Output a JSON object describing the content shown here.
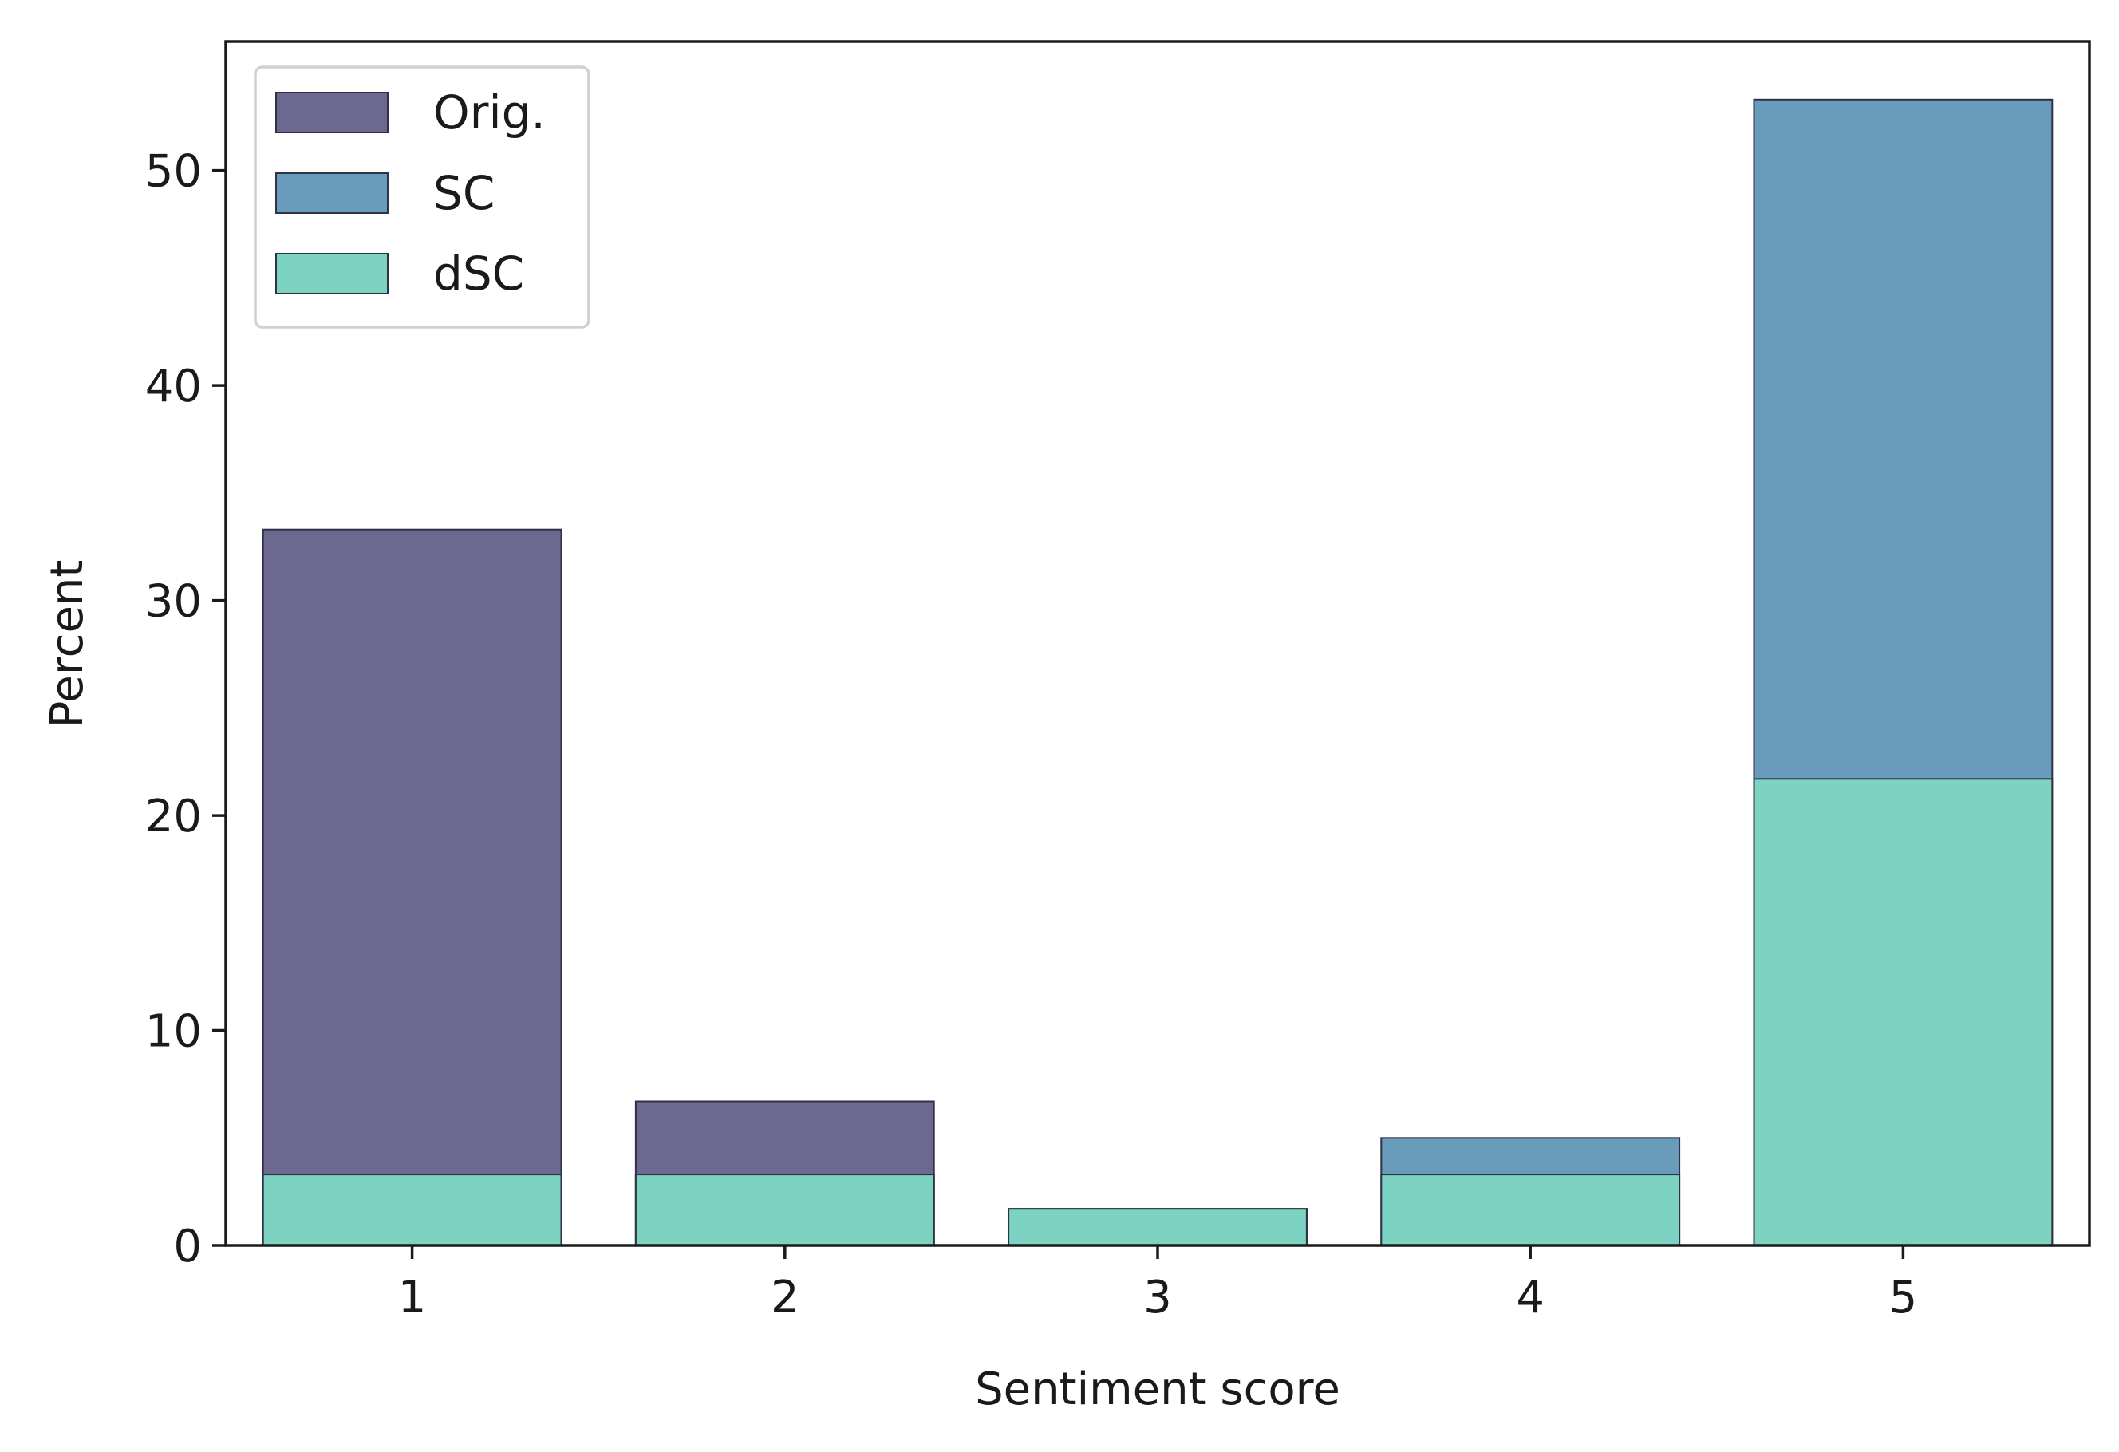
{
  "chart_data": {
    "type": "bar",
    "xlabel": "Sentiment score",
    "ylabel": "Percent",
    "categories": [
      "1",
      "2",
      "3",
      "4",
      "5"
    ],
    "ylim": [
      0,
      56
    ],
    "yticks": [
      "0",
      "10",
      "20",
      "30",
      "40",
      "50"
    ],
    "ytick_values": [
      0,
      10,
      20,
      30,
      40,
      50
    ],
    "grid": false,
    "legend_position": "top-left",
    "series": [
      {
        "name": "Orig.",
        "color": "#6c688f",
        "values": [
          33.3,
          6.7,
          0,
          0,
          0
        ]
      },
      {
        "name": "SC",
        "color": "#689cba",
        "values": [
          3.3,
          3.3,
          1.7,
          5.0,
          53.3
        ]
      },
      {
        "name": "dSC",
        "color": "#7cd3c2",
        "values": [
          3.3,
          3.3,
          1.7,
          3.3,
          21.7
        ]
      }
    ]
  }
}
